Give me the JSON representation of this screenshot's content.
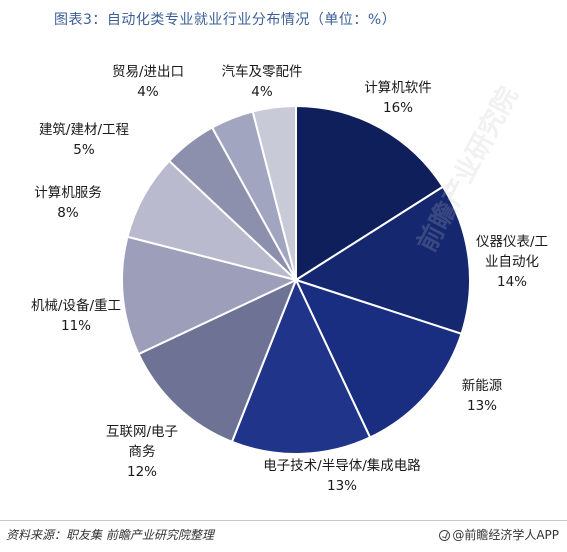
{
  "chart_data": {
    "type": "pie",
    "title": "图表3：自动化类专业就业行业分布情况（单位：%）",
    "slices": [
      {
        "label": [
          "计算机软件"
        ],
        "value": 16,
        "value_label": "16%",
        "color": "#0f1f5c"
      },
      {
        "label": [
          "仪器仪表/工",
          "业自动化"
        ],
        "value": 14,
        "value_label": "14%",
        "color": "#14276f"
      },
      {
        "label": [
          "新能源"
        ],
        "value": 13,
        "value_label": "13%",
        "color": "#192e80"
      },
      {
        "label": [
          "电子技术/半导体/集成电路"
        ],
        "value": 13,
        "value_label": "13%",
        "color": "#20348a"
      },
      {
        "label": [
          "互联网/电子",
          "商务"
        ],
        "value": 12,
        "value_label": "12%",
        "color": "#6e7295"
      },
      {
        "label": [
          "机械/设备/重工"
        ],
        "value": 11,
        "value_label": "11%",
        "color": "#9d9fba"
      },
      {
        "label": [
          "计算机服务"
        ],
        "value": 8,
        "value_label": "8%",
        "color": "#b9bacd"
      },
      {
        "label": [
          "建筑/建材/工程"
        ],
        "value": 5,
        "value_label": "5%",
        "color": "#8d90ad"
      },
      {
        "label": [
          "贸易/进出口"
        ],
        "value": 4,
        "value_label": "4%",
        "color": "#a2a5bf"
      },
      {
        "label": [
          "汽车及零配件"
        ],
        "value": 4,
        "value_label": "4%",
        "color": "#c9cad8"
      }
    ]
  },
  "watermark_text": "前瞻产业研究院",
  "footer": {
    "source": "资料来源：职友集 前瞻产业研究院整理",
    "brand": "@前瞻经济学人APP"
  }
}
